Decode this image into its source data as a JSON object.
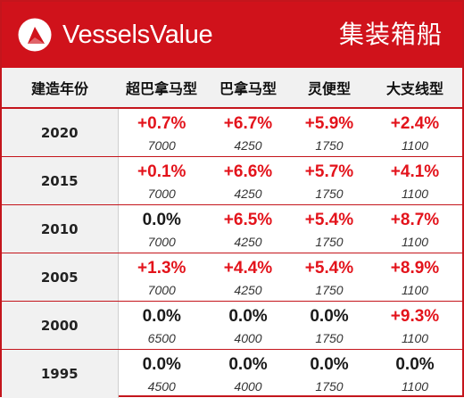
{
  "header": {
    "brand": "VesselsValue",
    "section_title": "集装箱船"
  },
  "table": {
    "columns": [
      "建造年份",
      "超巴拿马型",
      "巴拿马型",
      "灵便型",
      "大支线型"
    ],
    "rows": [
      {
        "year": "2020",
        "cells": [
          {
            "change": "+0.7%",
            "trend": "up",
            "size": "7000"
          },
          {
            "change": "+6.7%",
            "trend": "up",
            "size": "4250"
          },
          {
            "change": "+5.9%",
            "trend": "up",
            "size": "1750"
          },
          {
            "change": "+2.4%",
            "trend": "up",
            "size": "1100"
          }
        ]
      },
      {
        "year": "2015",
        "cells": [
          {
            "change": "+0.1%",
            "trend": "up",
            "size": "7000"
          },
          {
            "change": "+6.6%",
            "trend": "up",
            "size": "4250"
          },
          {
            "change": "+5.7%",
            "trend": "up",
            "size": "1750"
          },
          {
            "change": "+4.1%",
            "trend": "up",
            "size": "1100"
          }
        ]
      },
      {
        "year": "2010",
        "cells": [
          {
            "change": "0.0%",
            "trend": "flat",
            "size": "7000"
          },
          {
            "change": "+6.5%",
            "trend": "up",
            "size": "4250"
          },
          {
            "change": "+5.4%",
            "trend": "up",
            "size": "1750"
          },
          {
            "change": "+8.7%",
            "trend": "up",
            "size": "1100"
          }
        ]
      },
      {
        "year": "2005",
        "cells": [
          {
            "change": "+1.3%",
            "trend": "up",
            "size": "7000"
          },
          {
            "change": "+4.4%",
            "trend": "up",
            "size": "4250"
          },
          {
            "change": "+5.4%",
            "trend": "up",
            "size": "1750"
          },
          {
            "change": "+8.9%",
            "trend": "up",
            "size": "1100"
          }
        ]
      },
      {
        "year": "2000",
        "cells": [
          {
            "change": "0.0%",
            "trend": "flat",
            "size": "6500"
          },
          {
            "change": "0.0%",
            "trend": "flat",
            "size": "4000"
          },
          {
            "change": "0.0%",
            "trend": "flat",
            "size": "1750"
          },
          {
            "change": "+9.3%",
            "trend": "up",
            "size": "1100"
          }
        ]
      },
      {
        "year": "1995",
        "cells": [
          {
            "change": "0.0%",
            "trend": "flat",
            "size": "4500"
          },
          {
            "change": "0.0%",
            "trend": "flat",
            "size": "4000"
          },
          {
            "change": "0.0%",
            "trend": "flat",
            "size": "1750"
          },
          {
            "change": "0.0%",
            "trend": "flat",
            "size": "1100"
          }
        ]
      }
    ]
  },
  "colors": {
    "brand_red": "#d0121b",
    "positive": "#e3131b",
    "neutral": "#1a1a1a",
    "header_bg": "#f1f1f1"
  },
  "icons": {
    "logo": "vesselsvalue-logo-icon"
  }
}
